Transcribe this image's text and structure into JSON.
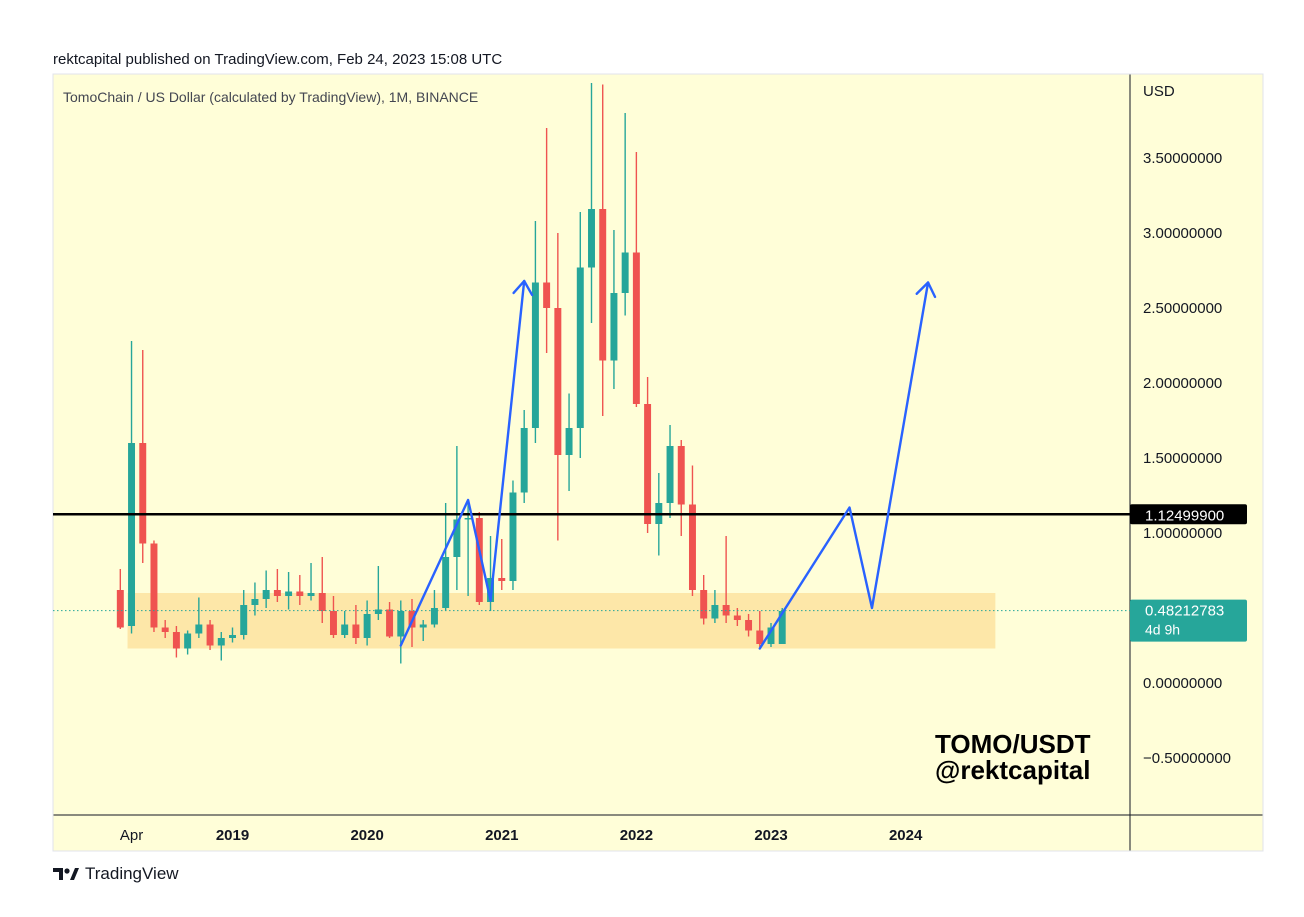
{
  "header": {
    "published": "rektcapital published on TradingView.com, Feb 24, 2023 15:08 UTC"
  },
  "footer": {
    "brand": "TradingView"
  },
  "colors": {
    "background": "#fffed8",
    "up": "#26a69a",
    "down": "#ef5350",
    "zone": "#fde3a0",
    "annotation": "#2962ff",
    "level": "#000000",
    "price_tag": "#26a69a"
  },
  "chart_data": {
    "type": "candlestick",
    "title": "TomoChain / US Dollar (calculated by TradingView), 1M, BINANCE",
    "currency_label": "USD",
    "y_ticks": [
      {
        "value": 3.5,
        "label": "3.50000000"
      },
      {
        "value": 3.0,
        "label": "3.00000000"
      },
      {
        "value": 2.5,
        "label": "2.50000000"
      },
      {
        "value": 2.0,
        "label": "2.00000000"
      },
      {
        "value": 1.5,
        "label": "1.50000000"
      },
      {
        "value": 1.0,
        "label": "1.00000000"
      },
      {
        "value": 0.0,
        "label": "0.00000000"
      },
      {
        "value": -0.5,
        "label": "−0.50000000"
      }
    ],
    "ylim": [
      -0.88,
      4.06
    ],
    "x_ticks": [
      {
        "date": "2018-04",
        "label": "Apr"
      },
      {
        "date": "2019-01",
        "label": "2019"
      },
      {
        "date": "2020-01",
        "label": "2020"
      },
      {
        "date": "2021-01",
        "label": "2021"
      },
      {
        "date": "2022-01",
        "label": "2022"
      },
      {
        "date": "2023-01",
        "label": "2023"
      },
      {
        "date": "2024-01",
        "label": "2024"
      }
    ],
    "xlim": [
      "2017-09",
      "2025-09"
    ],
    "candles": [
      {
        "date": "2018-03",
        "o": 0.62,
        "h": 0.76,
        "l": 0.36,
        "c": 0.37
      },
      {
        "date": "2018-04",
        "o": 0.38,
        "h": 2.28,
        "l": 0.33,
        "c": 1.6
      },
      {
        "date": "2018-05",
        "o": 1.6,
        "h": 2.22,
        "l": 0.8,
        "c": 0.93
      },
      {
        "date": "2018-06",
        "o": 0.93,
        "h": 0.95,
        "l": 0.34,
        "c": 0.37
      },
      {
        "date": "2018-07",
        "o": 0.37,
        "h": 0.42,
        "l": 0.3,
        "c": 0.34
      },
      {
        "date": "2018-08",
        "o": 0.34,
        "h": 0.38,
        "l": 0.17,
        "c": 0.23
      },
      {
        "date": "2018-09",
        "o": 0.23,
        "h": 0.35,
        "l": 0.19,
        "c": 0.33
      },
      {
        "date": "2018-10",
        "o": 0.33,
        "h": 0.57,
        "l": 0.3,
        "c": 0.39
      },
      {
        "date": "2018-11",
        "o": 0.39,
        "h": 0.42,
        "l": 0.22,
        "c": 0.25
      },
      {
        "date": "2018-12",
        "o": 0.25,
        "h": 0.34,
        "l": 0.15,
        "c": 0.3
      },
      {
        "date": "2019-01",
        "o": 0.3,
        "h": 0.37,
        "l": 0.27,
        "c": 0.32
      },
      {
        "date": "2019-02",
        "o": 0.32,
        "h": 0.62,
        "l": 0.29,
        "c": 0.52
      },
      {
        "date": "2019-03",
        "o": 0.52,
        "h": 0.67,
        "l": 0.45,
        "c": 0.56
      },
      {
        "date": "2019-04",
        "o": 0.56,
        "h": 0.75,
        "l": 0.5,
        "c": 0.62
      },
      {
        "date": "2019-05",
        "o": 0.62,
        "h": 0.76,
        "l": 0.54,
        "c": 0.58
      },
      {
        "date": "2019-06",
        "o": 0.58,
        "h": 0.74,
        "l": 0.49,
        "c": 0.61
      },
      {
        "date": "2019-07",
        "o": 0.61,
        "h": 0.72,
        "l": 0.52,
        "c": 0.58
      },
      {
        "date": "2019-08",
        "o": 0.58,
        "h": 0.8,
        "l": 0.55,
        "c": 0.6
      },
      {
        "date": "2019-09",
        "o": 0.6,
        "h": 0.84,
        "l": 0.4,
        "c": 0.48
      },
      {
        "date": "2019-10",
        "o": 0.48,
        "h": 0.58,
        "l": 0.3,
        "c": 0.32
      },
      {
        "date": "2019-11",
        "o": 0.32,
        "h": 0.48,
        "l": 0.3,
        "c": 0.39
      },
      {
        "date": "2019-12",
        "o": 0.39,
        "h": 0.52,
        "l": 0.26,
        "c": 0.3
      },
      {
        "date": "2020-01",
        "o": 0.3,
        "h": 0.55,
        "l": 0.25,
        "c": 0.46
      },
      {
        "date": "2020-02",
        "o": 0.46,
        "h": 0.78,
        "l": 0.42,
        "c": 0.49
      },
      {
        "date": "2020-03",
        "o": 0.49,
        "h": 0.54,
        "l": 0.3,
        "c": 0.31
      },
      {
        "date": "2020-04",
        "o": 0.31,
        "h": 0.55,
        "l": 0.13,
        "c": 0.48
      },
      {
        "date": "2020-05",
        "o": 0.48,
        "h": 0.56,
        "l": 0.24,
        "c": 0.37
      },
      {
        "date": "2020-06",
        "o": 0.37,
        "h": 0.42,
        "l": 0.28,
        "c": 0.39
      },
      {
        "date": "2020-07",
        "o": 0.39,
        "h": 0.62,
        "l": 0.37,
        "c": 0.5
      },
      {
        "date": "2020-08",
        "o": 0.5,
        "h": 1.2,
        "l": 0.48,
        "c": 0.84
      },
      {
        "date": "2020-09",
        "o": 0.84,
        "h": 1.58,
        "l": 0.62,
        "c": 1.09
      },
      {
        "date": "2020-10",
        "o": 1.09,
        "h": 1.22,
        "l": 0.58,
        "c": 1.1
      },
      {
        "date": "2020-11",
        "o": 1.1,
        "h": 1.14,
        "l": 0.52,
        "c": 0.54
      },
      {
        "date": "2020-12",
        "o": 0.54,
        "h": 0.98,
        "l": 0.48,
        "c": 0.7
      },
      {
        "date": "2021-01",
        "o": 0.7,
        "h": 0.96,
        "l": 0.62,
        "c": 0.68
      },
      {
        "date": "2021-02",
        "o": 0.68,
        "h": 1.35,
        "l": 0.62,
        "c": 1.27
      },
      {
        "date": "2021-03",
        "o": 1.27,
        "h": 1.82,
        "l": 1.2,
        "c": 1.7
      },
      {
        "date": "2021-04",
        "o": 1.7,
        "h": 3.08,
        "l": 1.6,
        "c": 2.67
      },
      {
        "date": "2021-05",
        "o": 2.67,
        "h": 3.7,
        "l": 2.2,
        "c": 2.5
      },
      {
        "date": "2021-06",
        "o": 2.5,
        "h": 3.0,
        "l": 0.95,
        "c": 1.52
      },
      {
        "date": "2021-07",
        "o": 1.52,
        "h": 1.93,
        "l": 1.28,
        "c": 1.7
      },
      {
        "date": "2021-08",
        "o": 1.7,
        "h": 3.14,
        "l": 1.5,
        "c": 2.77
      },
      {
        "date": "2021-09",
        "o": 2.77,
        "h": 4.0,
        "l": 2.4,
        "c": 3.16
      },
      {
        "date": "2021-10",
        "o": 3.16,
        "h": 3.99,
        "l": 1.78,
        "c": 2.15
      },
      {
        "date": "2021-11",
        "o": 2.15,
        "h": 3.02,
        "l": 1.96,
        "c": 2.6
      },
      {
        "date": "2021-12",
        "o": 2.6,
        "h": 3.8,
        "l": 2.45,
        "c": 2.87
      },
      {
        "date": "2022-01",
        "o": 2.87,
        "h": 3.54,
        "l": 1.84,
        "c": 1.86
      },
      {
        "date": "2022-02",
        "o": 1.86,
        "h": 2.04,
        "l": 1.0,
        "c": 1.06
      },
      {
        "date": "2022-03",
        "o": 1.06,
        "h": 1.4,
        "l": 0.85,
        "c": 1.2
      },
      {
        "date": "2022-04",
        "o": 1.2,
        "h": 1.72,
        "l": 1.1,
        "c": 1.58
      },
      {
        "date": "2022-05",
        "o": 1.58,
        "h": 1.62,
        "l": 0.98,
        "c": 1.19
      },
      {
        "date": "2022-06",
        "o": 1.19,
        "h": 1.45,
        "l": 0.58,
        "c": 0.62
      },
      {
        "date": "2022-07",
        "o": 0.62,
        "h": 0.72,
        "l": 0.39,
        "c": 0.43
      },
      {
        "date": "2022-08",
        "o": 0.43,
        "h": 0.62,
        "l": 0.4,
        "c": 0.52
      },
      {
        "date": "2022-09",
        "o": 0.52,
        "h": 0.98,
        "l": 0.4,
        "c": 0.45
      },
      {
        "date": "2022-10",
        "o": 0.45,
        "h": 0.5,
        "l": 0.38,
        "c": 0.42
      },
      {
        "date": "2022-11",
        "o": 0.42,
        "h": 0.46,
        "l": 0.31,
        "c": 0.35
      },
      {
        "date": "2022-12",
        "o": 0.35,
        "h": 0.48,
        "l": 0.24,
        "c": 0.26
      },
      {
        "date": "2023-01",
        "o": 0.26,
        "h": 0.4,
        "l": 0.24,
        "c": 0.37
      },
      {
        "date": "2023-02",
        "o": 0.26,
        "h": 0.5,
        "l": 0.26,
        "c": 0.48
      }
    ],
    "support_zone": {
      "from": "2018-04",
      "to": "2024-09",
      "low": 0.23,
      "high": 0.6
    },
    "horizontal_level": {
      "value": 1.124999,
      "label": "1.12499900"
    },
    "last_price": {
      "value": 0.48212783,
      "label": "0.48212783",
      "countdown": "4d 9h"
    },
    "annotations": [
      {
        "points": [
          [
            "2020-04",
            0.25
          ],
          [
            "2020-10",
            1.22
          ],
          [
            "2020-12",
            0.55
          ],
          [
            "2021-03",
            2.68
          ]
        ],
        "arrow": true
      },
      {
        "points": [
          [
            "2022-12",
            0.23
          ],
          [
            "2023-08",
            1.17
          ],
          [
            "2023-10",
            0.5
          ],
          [
            "2024-03",
            2.67
          ]
        ],
        "arrow": true
      }
    ],
    "watermark": {
      "line1": "TOMO/USDT",
      "line2": "@rektcapital"
    }
  }
}
